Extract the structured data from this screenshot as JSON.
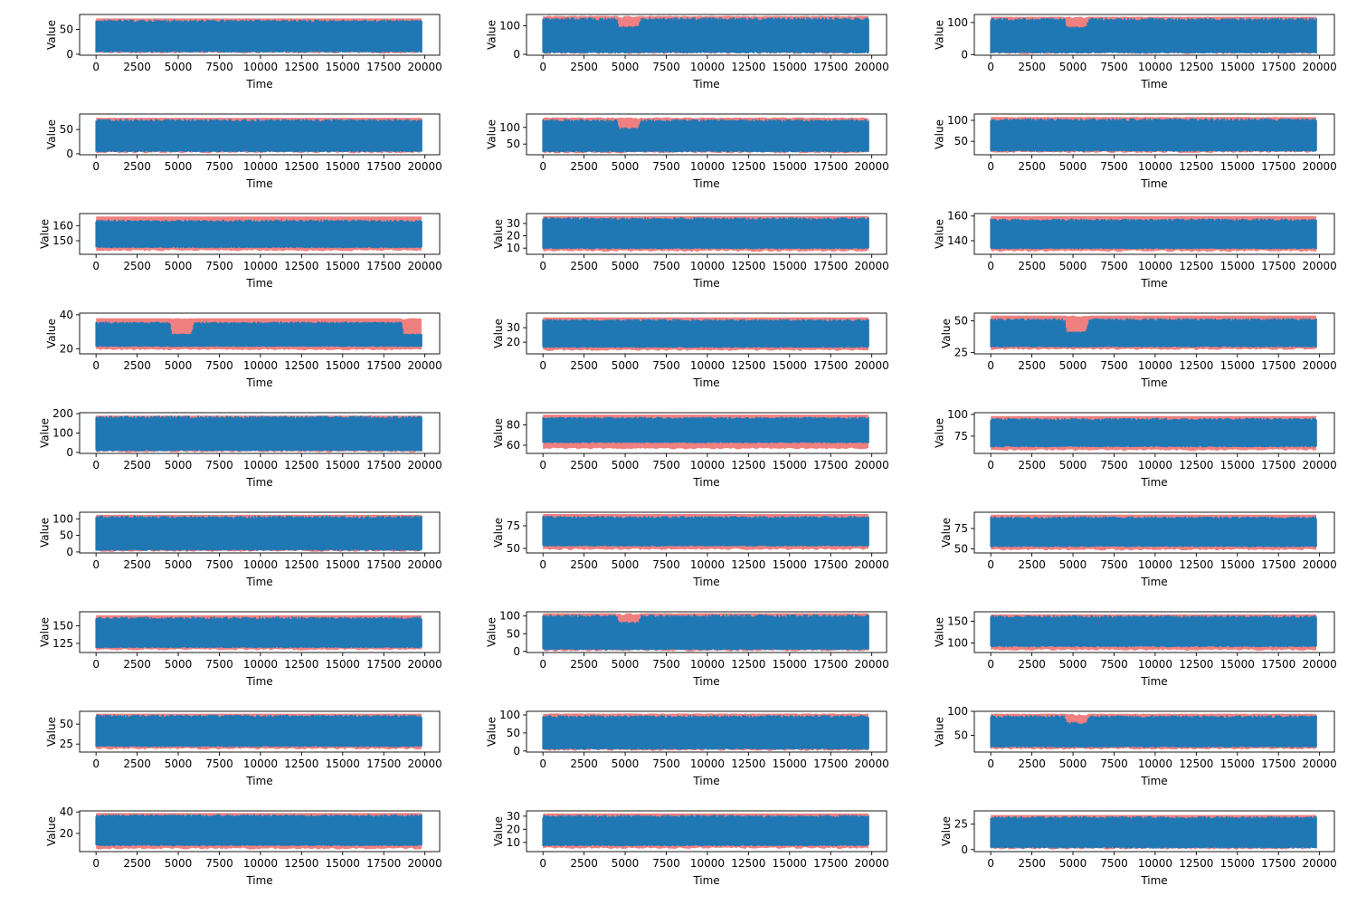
{
  "chart_data": [
    {
      "type": "line",
      "row": 1,
      "col": 1,
      "xlabel": "Time",
      "ylabel": "Value",
      "xlim": [
        -1000,
        20900
      ],
      "ylim": [
        -2,
        80
      ],
      "yticks": [
        0,
        50
      ],
      "band": [
        1,
        72
      ],
      "series_range": [
        3,
        68
      ],
      "envelope": [
        [
          0,
          70
        ],
        [
          19800,
          70
        ]
      ]
    },
    {
      "type": "line",
      "row": 1,
      "col": 2,
      "xlabel": "Time",
      "ylabel": "Value",
      "xlim": [
        -1000,
        20900
      ],
      "ylim": [
        -3,
        140
      ],
      "yticks": [
        0,
        100
      ],
      "band": [
        1,
        135
      ],
      "series_range": [
        3,
        130
      ],
      "envelope": [
        [
          0,
          130
        ],
        [
          4500,
          130
        ],
        [
          4600,
          100
        ],
        [
          5800,
          100
        ],
        [
          6000,
          130
        ],
        [
          19800,
          130
        ]
      ]
    },
    {
      "type": "line",
      "row": 1,
      "col": 3,
      "xlabel": "Time",
      "ylabel": "Value",
      "xlim": [
        -1000,
        20900
      ],
      "ylim": [
        -2,
        125
      ],
      "yticks": [
        0,
        100
      ],
      "band": [
        1,
        118
      ],
      "series_range": [
        3,
        112
      ],
      "envelope": [
        [
          0,
          115
        ],
        [
          4500,
          115
        ],
        [
          4600,
          90
        ],
        [
          5800,
          90
        ],
        [
          6000,
          115
        ],
        [
          19800,
          115
        ]
      ]
    },
    {
      "type": "line",
      "row": 2,
      "col": 1,
      "xlabel": "Time",
      "ylabel": "Value",
      "xlim": [
        -1000,
        20900
      ],
      "ylim": [
        -2,
        82
      ],
      "yticks": [
        0,
        50
      ],
      "band": [
        1,
        74
      ],
      "series_range": [
        3,
        70
      ],
      "envelope": [
        [
          0,
          72
        ],
        [
          19800,
          72
        ]
      ]
    },
    {
      "type": "line",
      "row": 2,
      "col": 2,
      "xlabel": "Time",
      "ylabel": "Value",
      "xlim": [
        -1000,
        20900
      ],
      "ylim": [
        18,
        140
      ],
      "yticks": [
        50,
        100
      ],
      "band": [
        22,
        130
      ],
      "series_range": [
        25,
        125
      ],
      "envelope": [
        [
          0,
          125
        ],
        [
          4500,
          125
        ],
        [
          4600,
          100
        ],
        [
          5800,
          100
        ],
        [
          6000,
          125
        ],
        [
          19800,
          125
        ]
      ]
    },
    {
      "type": "line",
      "row": 2,
      "col": 3,
      "xlabel": "Time",
      "ylabel": "Value",
      "xlim": [
        -1000,
        20900
      ],
      "ylim": [
        18,
        115
      ],
      "yticks": [
        50,
        100
      ],
      "band": [
        22,
        108
      ],
      "series_range": [
        25,
        102
      ],
      "envelope": [
        [
          0,
          105
        ],
        [
          19800,
          105
        ]
      ]
    },
    {
      "type": "line",
      "row": 3,
      "col": 1,
      "xlabel": "Time",
      "ylabel": "Value",
      "xlim": [
        -1000,
        20900
      ],
      "ylim": [
        141,
        168
      ],
      "yticks": [
        150,
        160
      ],
      "band": [
        143,
        166
      ],
      "series_range": [
        145,
        163
      ],
      "envelope": [
        [
          0,
          164
        ],
        [
          19800,
          164
        ]
      ]
    },
    {
      "type": "line",
      "row": 3,
      "col": 2,
      "xlabel": "Time",
      "ylabel": "Value",
      "xlim": [
        -1000,
        20900
      ],
      "ylim": [
        5,
        38
      ],
      "yticks": [
        10,
        20,
        30
      ],
      "band": [
        7,
        36
      ],
      "series_range": [
        9,
        34
      ],
      "envelope": [
        [
          0,
          35
        ],
        [
          19800,
          35
        ]
      ]
    },
    {
      "type": "line",
      "row": 3,
      "col": 3,
      "xlabel": "Time",
      "ylabel": "Value",
      "xlim": [
        -1000,
        20900
      ],
      "ylim": [
        129,
        162
      ],
      "yticks": [
        140,
        160
      ],
      "band": [
        131,
        160
      ],
      "series_range": [
        133,
        157
      ],
      "envelope": [
        [
          0,
          158
        ],
        [
          19800,
          158
        ]
      ]
    },
    {
      "type": "line",
      "row": 4,
      "col": 1,
      "xlabel": "Time",
      "ylabel": "Value",
      "xlim": [
        -1000,
        20900
      ],
      "ylim": [
        17,
        41
      ],
      "yticks": [
        20,
        40
      ],
      "band": [
        19,
        38
      ],
      "series_range": [
        21,
        35
      ],
      "envelope": [
        [
          0,
          36
        ],
        [
          4500,
          36
        ],
        [
          4600,
          29
        ],
        [
          5800,
          29
        ],
        [
          6000,
          36
        ],
        [
          18600,
          36
        ],
        [
          18700,
          29
        ],
        [
          19800,
          29
        ]
      ]
    },
    {
      "type": "line",
      "row": 4,
      "col": 2,
      "xlabel": "Time",
      "ylabel": "Value",
      "xlim": [
        -1000,
        20900
      ],
      "ylim": [
        12,
        40
      ],
      "yticks": [
        20,
        30
      ],
      "band": [
        14,
        37
      ],
      "series_range": [
        16,
        35
      ],
      "envelope": [
        [
          0,
          36
        ],
        [
          19800,
          36
        ]
      ]
    },
    {
      "type": "line",
      "row": 4,
      "col": 3,
      "xlabel": "Time",
      "ylabel": "Value",
      "xlim": [
        -1000,
        20900
      ],
      "ylim": [
        24,
        56
      ],
      "yticks": [
        25,
        50
      ],
      "band": [
        27,
        54
      ],
      "series_range": [
        29,
        51
      ],
      "envelope": [
        [
          0,
          52
        ],
        [
          4500,
          52
        ],
        [
          4600,
          42
        ],
        [
          5800,
          42
        ],
        [
          6000,
          52
        ],
        [
          19800,
          52
        ]
      ]
    },
    {
      "type": "line",
      "row": 5,
      "col": 1,
      "xlabel": "Time",
      "ylabel": "Value",
      "xlim": [
        -1000,
        20900
      ],
      "ylim": [
        -5,
        205
      ],
      "yticks": [
        0,
        100,
        200
      ],
      "band": [
        0,
        190
      ],
      "series_range": [
        5,
        185
      ],
      "envelope": [
        [
          0,
          190
        ],
        [
          19800,
          190
        ]
      ]
    },
    {
      "type": "line",
      "row": 5,
      "col": 2,
      "xlabel": "Time",
      "ylabel": "Value",
      "xlim": [
        -1000,
        20900
      ],
      "ylim": [
        52,
        92
      ],
      "yticks": [
        60,
        80
      ],
      "band": [
        56,
        90
      ],
      "series_range": [
        62,
        88
      ],
      "envelope": [
        [
          0,
          88
        ],
        [
          19800,
          88
        ]
      ]
    },
    {
      "type": "line",
      "row": 5,
      "col": 3,
      "xlabel": "Time",
      "ylabel": "Value",
      "xlim": [
        -1000,
        20900
      ],
      "ylim": [
        55,
        102
      ],
      "yticks": [
        75,
        100
      ],
      "band": [
        58,
        98
      ],
      "series_range": [
        62,
        94
      ],
      "envelope": [
        [
          0,
          96
        ],
        [
          19800,
          96
        ]
      ]
    },
    {
      "type": "line",
      "row": 6,
      "col": 1,
      "xlabel": "Time",
      "ylabel": "Value",
      "xlim": [
        -1000,
        20900
      ],
      "ylim": [
        -3,
        120
      ],
      "yticks": [
        0,
        50,
        100
      ],
      "band": [
        0,
        112
      ],
      "series_range": [
        3,
        110
      ],
      "envelope": [
        [
          0,
          110
        ],
        [
          19800,
          110
        ]
      ]
    },
    {
      "type": "line",
      "row": 6,
      "col": 2,
      "xlabel": "Time",
      "ylabel": "Value",
      "xlim": [
        -1000,
        20900
      ],
      "ylim": [
        45,
        90
      ],
      "yticks": [
        50,
        75
      ],
      "band": [
        48,
        88
      ],
      "series_range": [
        52,
        85
      ],
      "envelope": [
        [
          0,
          86
        ],
        [
          19800,
          86
        ]
      ]
    },
    {
      "type": "line",
      "row": 6,
      "col": 3,
      "xlabel": "Time",
      "ylabel": "Value",
      "xlim": [
        -1000,
        20900
      ],
      "ylim": [
        45,
        95
      ],
      "yticks": [
        50,
        75
      ],
      "band": [
        48,
        92
      ],
      "series_range": [
        52,
        88
      ],
      "envelope": [
        [
          0,
          90
        ],
        [
          19800,
          90
        ]
      ]
    },
    {
      "type": "line",
      "row": 7,
      "col": 1,
      "xlabel": "Time",
      "ylabel": "Value",
      "xlim": [
        -1000,
        20900
      ],
      "ylim": [
        112,
        170
      ],
      "yticks": [
        125,
        150
      ],
      "band": [
        115,
        165
      ],
      "series_range": [
        118,
        162
      ],
      "envelope": [
        [
          0,
          163
        ],
        [
          19800,
          163
        ]
      ]
    },
    {
      "type": "line",
      "row": 7,
      "col": 2,
      "xlabel": "Time",
      "ylabel": "Value",
      "xlim": [
        -1000,
        20900
      ],
      "ylim": [
        -3,
        112
      ],
      "yticks": [
        0,
        50,
        100
      ],
      "band": [
        0,
        108
      ],
      "series_range": [
        3,
        105
      ],
      "envelope": [
        [
          0,
          105
        ],
        [
          4500,
          105
        ],
        [
          4600,
          85
        ],
        [
          5800,
          85
        ],
        [
          6000,
          105
        ],
        [
          19800,
          105
        ]
      ]
    },
    {
      "type": "line",
      "row": 7,
      "col": 3,
      "xlabel": "Time",
      "ylabel": "Value",
      "xlim": [
        -1000,
        20900
      ],
      "ylim": [
        78,
        172
      ],
      "yticks": [
        100,
        150
      ],
      "band": [
        82,
        166
      ],
      "series_range": [
        90,
        162
      ],
      "envelope": [
        [
          0,
          164
        ],
        [
          19800,
          164
        ]
      ]
    },
    {
      "type": "line",
      "row": 8,
      "col": 1,
      "xlabel": "Time",
      "ylabel": "Value",
      "xlim": [
        -1000,
        20900
      ],
      "ylim": [
        15,
        66
      ],
      "yticks": [
        25,
        50
      ],
      "band": [
        18,
        63
      ],
      "series_range": [
        21,
        60
      ],
      "envelope": [
        [
          0,
          62
        ],
        [
          19800,
          62
        ]
      ]
    },
    {
      "type": "line",
      "row": 8,
      "col": 2,
      "xlabel": "Time",
      "ylabel": "Value",
      "xlim": [
        -1000,
        20900
      ],
      "ylim": [
        -3,
        110
      ],
      "yticks": [
        0,
        50,
        100
      ],
      "band": [
        0,
        104
      ],
      "series_range": [
        3,
        100
      ],
      "envelope": [
        [
          0,
          100
        ],
        [
          19800,
          100
        ]
      ]
    },
    {
      "type": "line",
      "row": 8,
      "col": 3,
      "xlabel": "Time",
      "ylabel": "Value",
      "xlim": [
        -1000,
        20900
      ],
      "ylim": [
        15,
        100
      ],
      "yticks": [
        50,
        100
      ],
      "band": [
        20,
        95
      ],
      "series_range": [
        24,
        92
      ],
      "envelope": [
        [
          0,
          92
        ],
        [
          4500,
          92
        ],
        [
          4600,
          78
        ],
        [
          5800,
          78
        ],
        [
          6000,
          92
        ],
        [
          19800,
          92
        ]
      ]
    },
    {
      "type": "line",
      "row": 9,
      "col": 1,
      "xlabel": "Time",
      "ylabel": "Value",
      "xlim": [
        -1000,
        20900
      ],
      "ylim": [
        3,
        41
      ],
      "yticks": [
        20,
        40
      ],
      "band": [
        5,
        39
      ],
      "series_range": [
        8,
        37
      ],
      "envelope": [
        [
          0,
          38
        ],
        [
          19800,
          38
        ]
      ]
    },
    {
      "type": "line",
      "row": 9,
      "col": 2,
      "xlabel": "Time",
      "ylabel": "Value",
      "xlim": [
        -1000,
        20900
      ],
      "ylim": [
        3,
        34
      ],
      "yticks": [
        10,
        20,
        30
      ],
      "band": [
        5,
        32
      ],
      "series_range": [
        7,
        30
      ],
      "envelope": [
        [
          0,
          31
        ],
        [
          19800,
          31
        ]
      ]
    },
    {
      "type": "line",
      "row": 9,
      "col": 3,
      "xlabel": "Time",
      "ylabel": "Value",
      "xlim": [
        -1000,
        20900
      ],
      "ylim": [
        -2,
        38
      ],
      "yticks": [
        0,
        25
      ],
      "band": [
        0,
        34
      ],
      "series_range": [
        1,
        32
      ],
      "envelope": [
        [
          0,
          33
        ],
        [
          19800,
          33
        ]
      ]
    }
  ],
  "x_ticks": [
    0,
    2500,
    5000,
    7500,
    10000,
    12500,
    15000,
    17500,
    20000
  ],
  "colors": {
    "series": "#1f77b4",
    "band": "#f08080",
    "axes": "#000000"
  }
}
